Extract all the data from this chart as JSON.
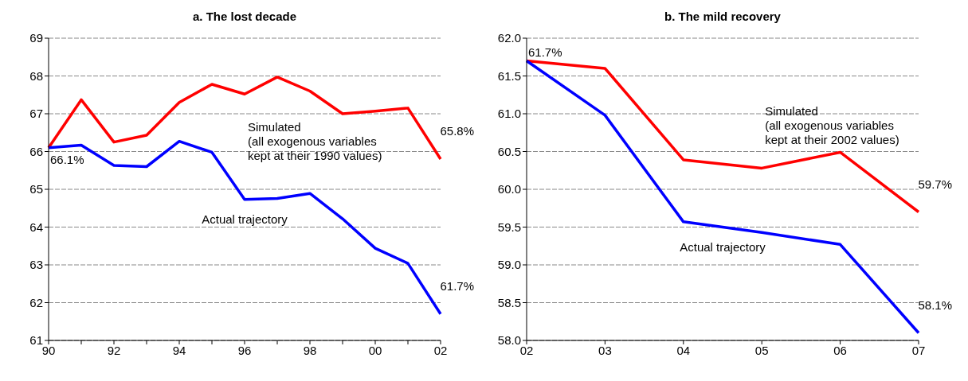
{
  "chart_data": [
    {
      "type": "line",
      "title": "a. The lost decade",
      "categories": [
        "90",
        null,
        "92",
        null,
        "94",
        null,
        "96",
        null,
        "98",
        null,
        "00",
        null,
        "02"
      ],
      "series": [
        {
          "name": "Simulated\n(all exogenous variables\nkept at their 1990 values)",
          "color": "#ff0000",
          "values": [
            66.1,
            67.37,
            66.25,
            66.43,
            67.3,
            67.78,
            67.52,
            67.97,
            67.6,
            67.0,
            67.07,
            67.15,
            65.8
          ]
        },
        {
          "name": "Actual trajectory",
          "color": "#0000ff",
          "values": [
            66.1,
            66.17,
            65.63,
            65.6,
            66.27,
            65.98,
            64.73,
            64.76,
            64.89,
            64.22,
            63.44,
            63.04,
            61.7
          ]
        }
      ],
      "ylim": [
        61,
        69
      ],
      "yticks": [
        61,
        62,
        63,
        64,
        65,
        66,
        67,
        68,
        69
      ],
      "grid": "y",
      "legend": false,
      "line_style": "solid",
      "marker": "none",
      "annotations": [
        {
          "text": "66.1%",
          "x": "90",
          "y": 66.1
        },
        {
          "text": "65.8%",
          "x": "02",
          "y": 65.8
        },
        {
          "text": "61.7%",
          "x": "02",
          "y": 61.7
        }
      ]
    },
    {
      "type": "line",
      "title": "b. The mild recovery",
      "categories": [
        "02",
        "03",
        "04",
        "05",
        "06",
        "07"
      ],
      "series": [
        {
          "name": "Simulated\n(all exogenous variables\nkept at their 2002 values)",
          "color": "#ff0000",
          "values": [
            61.7,
            61.6,
            60.39,
            60.28,
            60.49,
            59.7
          ]
        },
        {
          "name": "Actual trajectory",
          "color": "#0000ff",
          "values": [
            61.7,
            60.98,
            59.57,
            59.43,
            59.27,
            58.1
          ]
        }
      ],
      "ylim": [
        58,
        62
      ],
      "yticks": [
        {
          "value": 58,
          "label": "58.0"
        },
        58.5,
        {
          "value": 59,
          "label": "59.0"
        },
        59.5,
        {
          "value": 60,
          "label": "60.0"
        },
        60.5,
        {
          "value": 61,
          "label": "61.0"
        },
        61.5,
        {
          "value": 62,
          "label": "62.0"
        }
      ],
      "grid": "y",
      "legend": false,
      "line_style": "solid",
      "marker": "none",
      "annotations": [
        {
          "text": "61.7%",
          "x": "02",
          "y": 61.7
        },
        {
          "text": "59.7%",
          "x": "07",
          "y": 59.7
        },
        {
          "text": "58.1%",
          "x": "07",
          "y": 58.1
        }
      ]
    }
  ]
}
